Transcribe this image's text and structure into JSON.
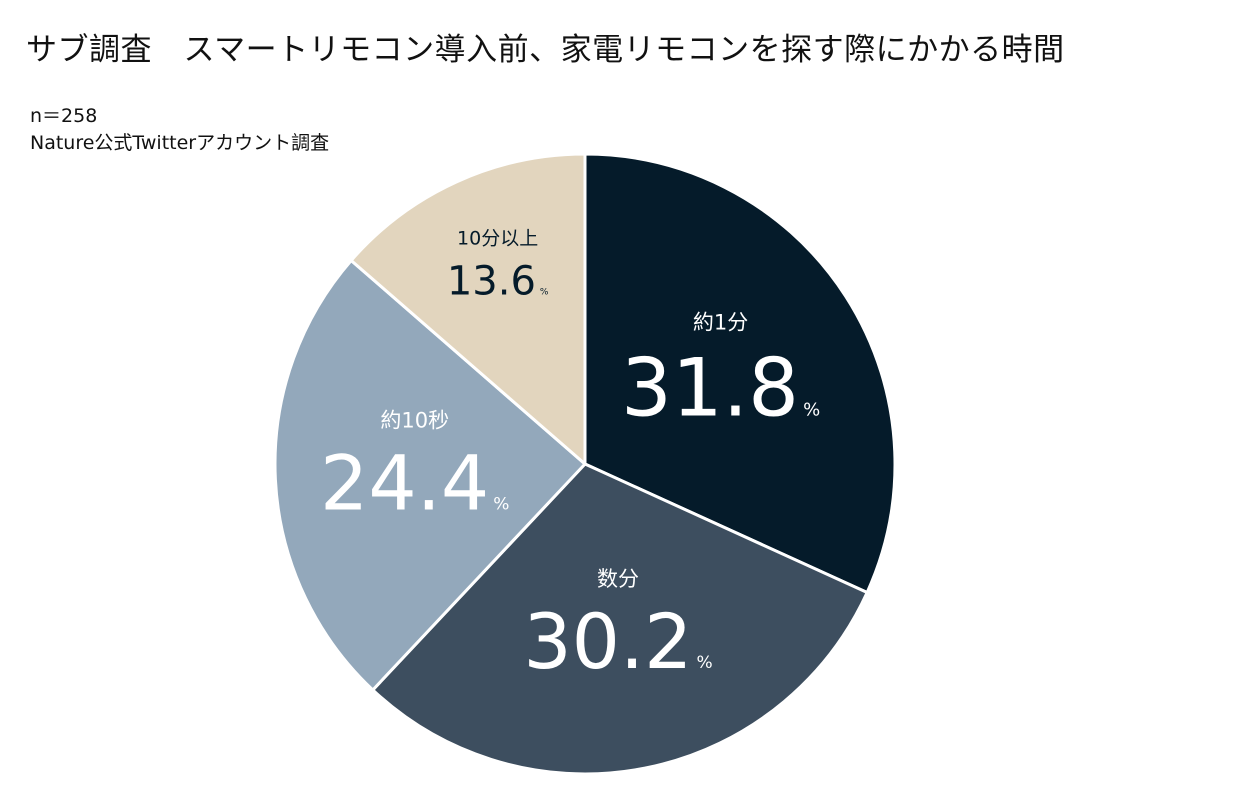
{
  "title": "サブ調査　スマートリモコン導入前、家電リモコンを探す際にかかる時間",
  "sample_size": "n＝258",
  "source": "Nature公式Twitterアカウント調査",
  "chart_data": {
    "type": "pie",
    "title": "サブ調査　スマートリモコン導入前、家電リモコンを探す際にかかる時間",
    "unit": "%",
    "start": "12 o'clock",
    "direction": "clockwise",
    "slices": [
      {
        "label": "約1分",
        "value": 31.8,
        "color": "#051b2a",
        "text_color": "#ffffff"
      },
      {
        "label": "数分",
        "value": 30.2,
        "color": "#3d4e5f",
        "text_color": "#ffffff"
      },
      {
        "label": "約10秒",
        "value": 24.4,
        "color": "#93a8bb",
        "text_color": "#ffffff"
      },
      {
        "label": "10分以上",
        "value": 13.6,
        "color": "#e2d5be",
        "text_color": "#051b2a"
      }
    ]
  }
}
